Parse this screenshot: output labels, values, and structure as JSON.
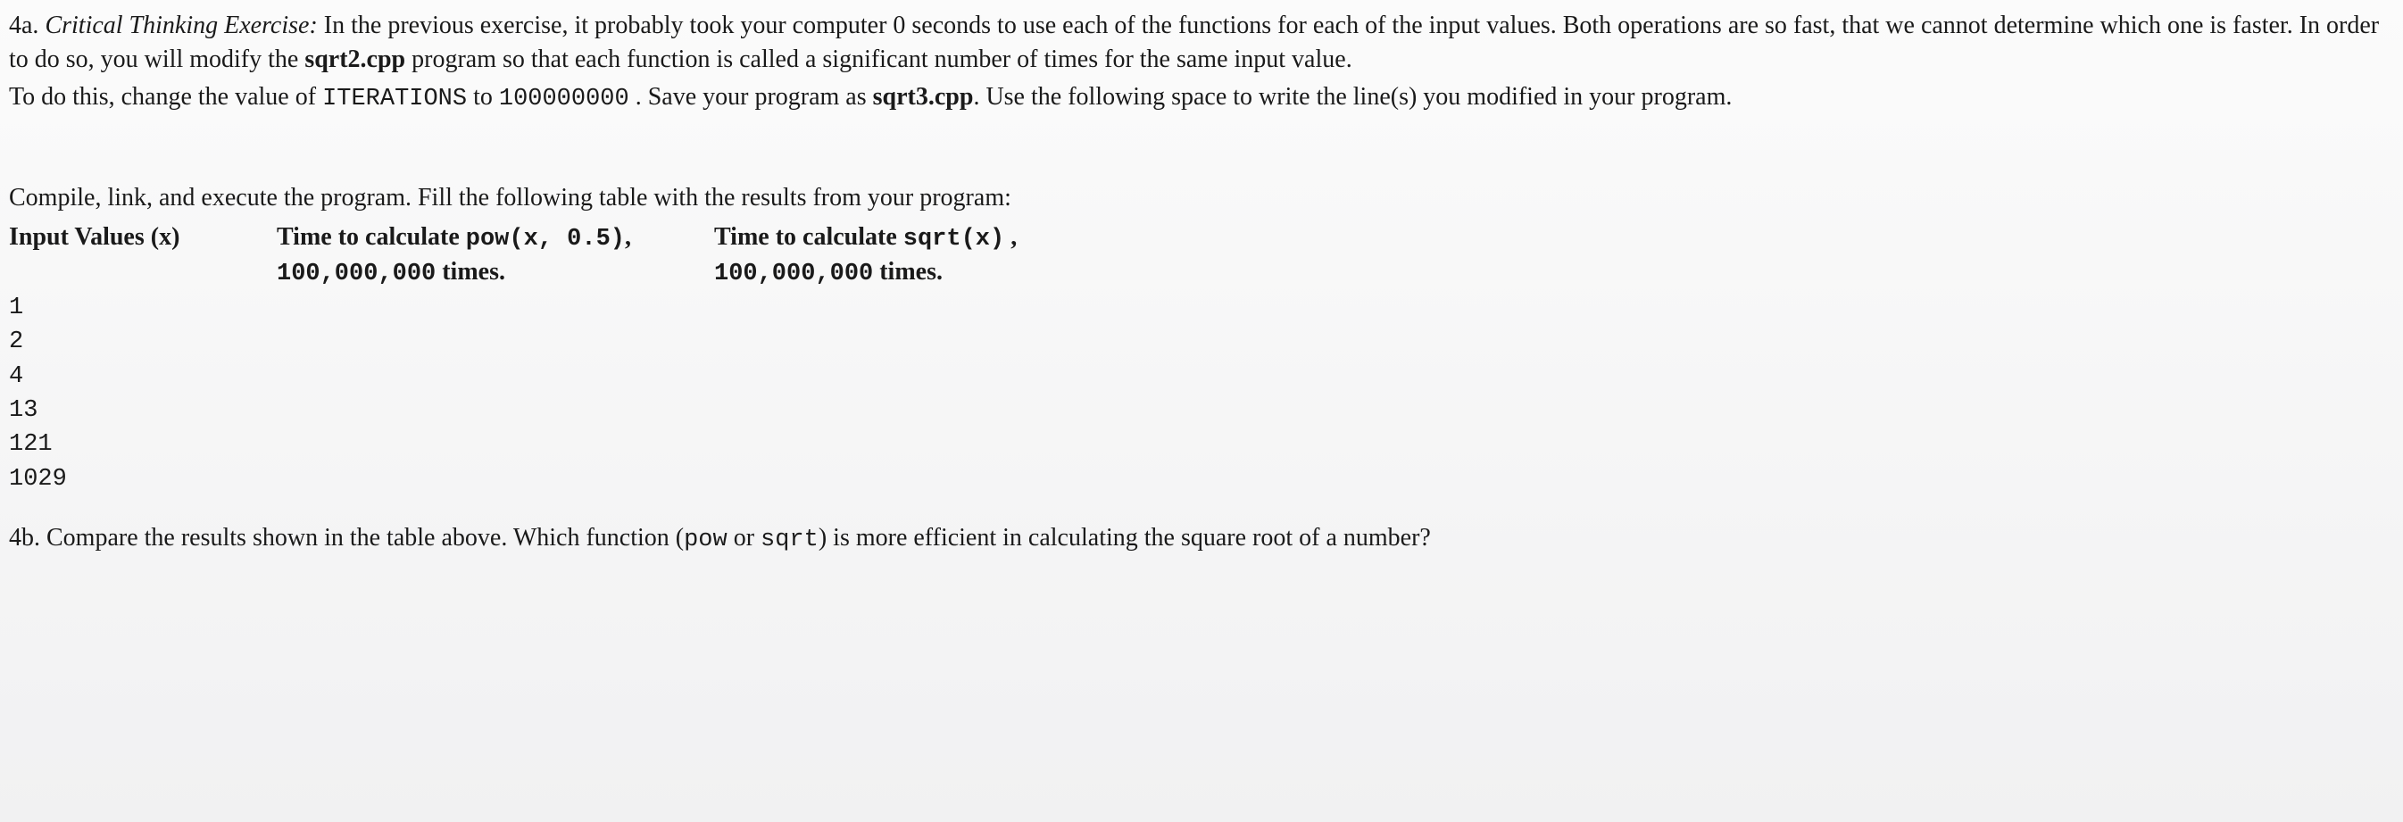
{
  "q4a": {
    "label": "4a. ",
    "title_italic": "Critical Thinking Exercise:",
    "p1_a": " In the previous exercise, it probably took your computer 0 seconds to use each of the functions for each of the input values. Both operations are so fast, that we cannot determine which one is faster. In order to do so, you will modify the ",
    "p1_file1": "sqrt2.cpp",
    "p1_b": " program so that each function is called a significant number of times for the same input value.",
    "p2_a": "To do this, change the value of ",
    "p2_code1": "ITERATIONS",
    "p2_b": " to ",
    "p2_code2": "100000000",
    "p2_c": " . Save your program as ",
    "p2_file2": "sqrt3.cpp",
    "p2_d": ". Use the following space to write the line(s) you modified in your program.",
    "p3": "Compile, link, and execute the program. Fill the following table with the results from your program:"
  },
  "table": {
    "header": {
      "col1": "Input Values (x)",
      "col2_a": "Time to calculate ",
      "col2_code": "pow(x, 0.5)",
      "col2_b": ",",
      "col2_sub_code": "100,000,000",
      "col2_sub_b": " times.",
      "col3_a": "Time to calculate ",
      "col3_code": "sqrt(x)",
      "col3_b": " ,",
      "col3_sub_code": "100,000,000",
      "col3_sub_b": " times."
    },
    "rows": [
      "1",
      "2",
      "4",
      "13",
      "121",
      "1029"
    ]
  },
  "q4b": {
    "label": "4b. ",
    "a": "Compare the results shown in the table above. Which function (",
    "code1": "pow",
    "b": " or ",
    "code2": "sqrt",
    "c": ") is more efficient in calculating the square root of a number?"
  }
}
